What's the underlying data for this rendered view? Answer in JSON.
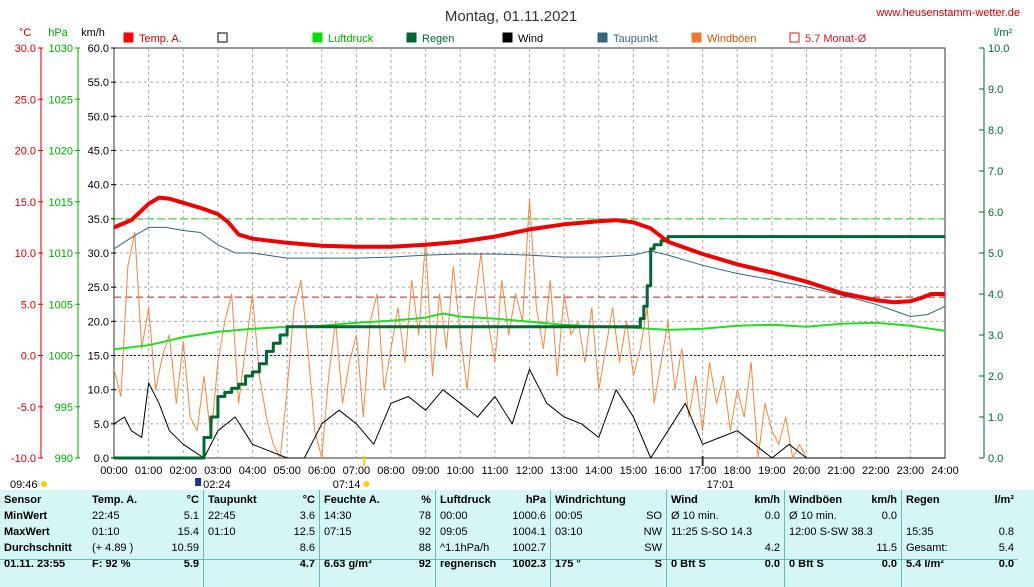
{
  "site": "www.heusenstamm-wetter.de",
  "chart_data": {
    "type": "line",
    "title": "Montag, 01.11.2021",
    "axes": {
      "temp": {
        "label": "°C",
        "min": -10,
        "max": 30,
        "ticks": [
          "30.0",
          "25.0",
          "20.0",
          "15.0",
          "10.0",
          "5.0",
          "0.0",
          "-5.0",
          "-10.0"
        ]
      },
      "pressure": {
        "label": "hPa",
        "min": 990,
        "max": 1030,
        "ticks": [
          "1030",
          "1025",
          "1020",
          "1015",
          "1010",
          "1005",
          "1000",
          "995",
          "990"
        ]
      },
      "wind": {
        "label": "km/h",
        "min": 0,
        "max": 60,
        "ticks": [
          "60.0",
          "55.0",
          "50.0",
          "45.0",
          "40.0",
          "35.0",
          "30.0",
          "25.0",
          "20.0",
          "15.0",
          "10.0",
          "5.0",
          "0.0"
        ]
      },
      "rain": {
        "label": "l/m²",
        "min": 0,
        "max": 10,
        "ticks": [
          "10.0",
          "9.0",
          "8.0",
          "7.0",
          "6.0",
          "5.0",
          "4.0",
          "3.0",
          "2.0",
          "1.0",
          "0.0"
        ]
      },
      "time_ticks": [
        "00:00",
        "01:00",
        "02:00",
        "03:00",
        "04:00",
        "05:00",
        "06:00",
        "07:00",
        "08:00",
        "09:00",
        "10:00",
        "11:00",
        "12:00",
        "13:00",
        "14:00",
        "15:00",
        "16:00",
        "17:00",
        "18:00",
        "19:00",
        "20:00",
        "21:00",
        "22:00",
        "23:00",
        "24:00"
      ]
    },
    "legend": [
      {
        "name": "Temp. A.",
        "color": "#ff0000"
      },
      {
        "name": "",
        "color": "#000000"
      },
      {
        "name": "Luftdruck",
        "color": "#00dd00"
      },
      {
        "name": "Regen",
        "color": "#006633"
      },
      {
        "name": "Wind",
        "color": "#000000"
      },
      {
        "name": "Taupunkt",
        "color": "#336677"
      },
      {
        "name": "Windböen",
        "color": "#ee7733"
      },
      {
        "name": "5.7 Monat-Ø",
        "color": "#cc2222"
      }
    ],
    "time_markers": [
      "09:46",
      "02:24",
      "07:14",
      "17:01"
    ],
    "reference_lines": {
      "temp_month_avg": 5.7,
      "pressure_1000": 1000,
      "green_dashed_wind": 35
    },
    "series": {
      "temp": {
        "x": [
          0,
          0.5,
          1,
          1.3,
          1.6,
          2,
          2.5,
          3,
          3.3,
          3.6,
          4,
          5,
          6,
          7,
          8,
          9,
          10,
          11,
          12,
          13,
          14,
          14.5,
          15,
          15.5,
          16,
          17,
          18,
          19,
          20,
          21,
          22,
          22.5,
          23,
          23.3,
          23.6,
          24
        ],
        "y": [
          12.5,
          13.2,
          14.8,
          15.4,
          15.3,
          14.9,
          14.4,
          13.8,
          13.0,
          11.8,
          11.4,
          11.0,
          10.7,
          10.6,
          10.6,
          10.8,
          11.1,
          11.6,
          12.3,
          12.8,
          13.1,
          13.2,
          13.0,
          12.4,
          11.1,
          9.9,
          8.9,
          8.1,
          7.2,
          6.1,
          5.4,
          5.2,
          5.3,
          5.6,
          6.0,
          6.0
        ]
      },
      "dewpoint": {
        "x": [
          0,
          0.5,
          1,
          1.5,
          2,
          2.5,
          3,
          3.5,
          4,
          5,
          6,
          7,
          8,
          9,
          10,
          11,
          12,
          13,
          14,
          15,
          15.5,
          16,
          17,
          18,
          19,
          20,
          21,
          22,
          23,
          23.5,
          24
        ],
        "y": [
          10.4,
          11.5,
          12.5,
          12.5,
          12.2,
          12.0,
          10.8,
          10.0,
          10.0,
          9.5,
          9.5,
          9.5,
          9.6,
          9.8,
          9.9,
          9.9,
          9.8,
          9.6,
          9.6,
          9.8,
          10.2,
          9.8,
          8.8,
          8.0,
          7.4,
          6.7,
          5.9,
          5.0,
          3.8,
          4.0,
          4.8
        ]
      },
      "pressure": {
        "x": [
          0,
          1,
          2,
          3,
          4,
          5,
          6,
          7,
          8,
          9,
          9.5,
          10,
          11,
          12,
          13,
          14,
          15,
          16,
          17,
          18,
          19,
          20,
          21,
          22,
          23,
          24
        ],
        "y": [
          1000.6,
          1001.0,
          1001.8,
          1002.3,
          1002.6,
          1002.8,
          1002.9,
          1003.2,
          1003.4,
          1003.7,
          1004.1,
          1003.8,
          1003.6,
          1003.3,
          1003.0,
          1002.8,
          1002.7,
          1002.5,
          1002.6,
          1002.9,
          1003.0,
          1002.8,
          1003.1,
          1003.2,
          1002.9,
          1002.4
        ]
      },
      "rain": {
        "x": [
          0,
          2.4,
          2.6,
          2.8,
          3.0,
          3.2,
          3.4,
          3.6,
          3.8,
          4.0,
          4.2,
          4.4,
          4.6,
          4.8,
          5.0,
          6,
          8,
          10,
          12,
          14,
          15,
          15.1,
          15.2,
          15.3,
          15.4,
          15.5,
          15.6,
          15.8,
          16,
          18,
          20,
          22,
          24
        ],
        "y": [
          0,
          0,
          0.5,
          1.0,
          1.5,
          1.6,
          1.7,
          1.8,
          2.0,
          2.1,
          2.3,
          2.6,
          2.8,
          3.0,
          3.2,
          3.2,
          3.2,
          3.2,
          3.2,
          3.2,
          3.2,
          3.2,
          3.4,
          3.7,
          4.2,
          5.1,
          5.2,
          5.3,
          5.4,
          5.4,
          5.4,
          5.4,
          5.4
        ]
      },
      "wind": {
        "x": [
          0,
          0.3,
          0.5,
          0.8,
          1,
          1.3,
          1.6,
          2,
          2.3,
          2.6,
          3,
          3.5,
          4,
          4.5,
          5,
          5.5,
          6,
          6.5,
          7,
          7.5,
          8,
          8.5,
          9,
          9.5,
          10,
          10.5,
          11,
          11.5,
          12,
          12.5,
          13,
          13.5,
          14,
          14.5,
          15,
          15.5,
          16,
          16.5,
          17,
          17.5,
          18,
          18.5,
          19,
          19.5,
          20,
          20.5,
          21,
          22,
          23,
          24
        ],
        "y": [
          5,
          6,
          4,
          3,
          11,
          8,
          4,
          2,
          1,
          0,
          4,
          6,
          2,
          1,
          0,
          0,
          5,
          7,
          5,
          2,
          8,
          9,
          7,
          10,
          8,
          6,
          9,
          5,
          13,
          8,
          6,
          5,
          3,
          10,
          6,
          0,
          4,
          8,
          2,
          3,
          4,
          2,
          0,
          2,
          0,
          0,
          0,
          0,
          0,
          0
        ]
      },
      "gust": {
        "x": [
          0,
          0.2,
          0.4,
          0.6,
          0.8,
          1,
          1.2,
          1.4,
          1.6,
          1.8,
          2,
          2.2,
          2.4,
          2.6,
          2.8,
          3,
          3.2,
          3.4,
          3.6,
          3.8,
          4,
          4.2,
          4.4,
          4.6,
          4.8,
          5,
          5.2,
          5.4,
          5.6,
          5.8,
          6,
          6.2,
          6.4,
          6.6,
          6.8,
          7,
          7.2,
          7.4,
          7.6,
          7.8,
          8,
          8.2,
          8.4,
          8.6,
          8.8,
          9,
          9.2,
          9.4,
          9.6,
          9.8,
          10,
          10.2,
          10.4,
          10.6,
          10.8,
          11,
          11.2,
          11.4,
          11.6,
          11.8,
          12,
          12.2,
          12.4,
          12.6,
          12.8,
          13,
          13.2,
          13.4,
          13.6,
          13.8,
          14,
          14.2,
          14.4,
          14.6,
          14.8,
          15,
          15.2,
          15.4,
          15.6,
          15.8,
          16,
          16.2,
          16.4,
          16.6,
          16.8,
          17,
          17.2,
          17.4,
          17.6,
          17.8,
          18,
          18.2,
          18.4,
          18.6,
          18.8,
          19,
          19.2,
          19.4,
          19.6,
          19.8,
          20
        ],
        "y": [
          13,
          9,
          28,
          33,
          16,
          22,
          10,
          15,
          18,
          8,
          17,
          6,
          4,
          12,
          3,
          14,
          20,
          24,
          8,
          16,
          24,
          12,
          6,
          2,
          0,
          10,
          22,
          26,
          16,
          4,
          0,
          12,
          20,
          8,
          14,
          18,
          6,
          20,
          24,
          10,
          16,
          22,
          14,
          26,
          18,
          32,
          12,
          24,
          16,
          28,
          18,
          10,
          22,
          30,
          20,
          14,
          26,
          18,
          24,
          20,
          38,
          22,
          16,
          26,
          12,
          24,
          18,
          20,
          14,
          22,
          10,
          16,
          22,
          14,
          20,
          12,
          16,
          22,
          8,
          14,
          20,
          10,
          16,
          6,
          12,
          4,
          14,
          8,
          12,
          4,
          10,
          6,
          14,
          0,
          8,
          4,
          2,
          6,
          0,
          2,
          0
        ]
      }
    }
  },
  "stats": {
    "labels": {
      "header": "Sensor",
      "min": "MinWert",
      "max": "MaxWert",
      "avg": "Durchschnitt",
      "date": "01.11.  23:55"
    },
    "temp": {
      "title": "Temp. A.",
      "unit": "°C",
      "min_t": "22:45",
      "min_v": "5.1",
      "max_t": "01:10",
      "max_v": "15.4",
      "avg_t": "(+ 4.89 )",
      "avg_v": "10.59",
      "cur_t": "F: 92 %",
      "cur_v": "5.9"
    },
    "dew": {
      "title": "Taupunkt",
      "unit": "°C",
      "min_t": "22:45",
      "min_v": "3.6",
      "max_t": "01:10",
      "max_v": "12.5",
      "avg_t": "",
      "avg_v": "8.6",
      "cur_t": "",
      "cur_v": "4.7"
    },
    "hum": {
      "title": "Feuchte A.",
      "unit": "%",
      "min_t": "14:30",
      "min_v": "78",
      "max_t": "07:15",
      "max_v": "92",
      "avg_t": "",
      "avg_v": "88",
      "cur_t": "6.63 g/m³",
      "cur_v": "92"
    },
    "press": {
      "title": "Luftdruck",
      "unit": "hPa",
      "min_t": "00:00",
      "min_v": "1000.6",
      "max_t": "09:05",
      "max_v": "1004.1",
      "avg_t": "^1.1hPa/h",
      "avg_v": "1002.7",
      "cur_t": "regnerisch",
      "cur_v": "1002.3"
    },
    "dir": {
      "title": "Windrichtung",
      "unit": "",
      "min_t": "00:05",
      "min_v": "SO",
      "max_t": "03:10",
      "max_v": "NW",
      "avg_t": "",
      "avg_v": "SW",
      "cur_t": "175 °",
      "cur_v": "S"
    },
    "wind": {
      "title": "Wind",
      "unit": "km/h",
      "min_t": "Ø 10 min.",
      "min_v": "0.0",
      "max_t": "11:25     S-SO 14.3",
      "max_v": "",
      "avg_t": "",
      "avg_v": "4.2",
      "cur_t": "0 Bft S",
      "cur_v": "0.0"
    },
    "gust": {
      "title": "Windböen",
      "unit": "km/h",
      "min_t": "Ø 10 min.",
      "min_v": "0.0",
      "max_t": "12:00     S-SW 38.3",
      "max_v": "",
      "avg_t": "",
      "avg_v": "11.5",
      "cur_t": "0 Bft S",
      "cur_v": "0.0"
    },
    "rain": {
      "title": "Regen",
      "unit": "l/m²",
      "min_t": "",
      "min_v": "",
      "max_t": "15:35",
      "max_v": "0.8",
      "avg_t": "Gesamt:",
      "avg_v": "5.4",
      "cur_t": "5.4 l/m²",
      "cur_v": "0.0"
    }
  }
}
